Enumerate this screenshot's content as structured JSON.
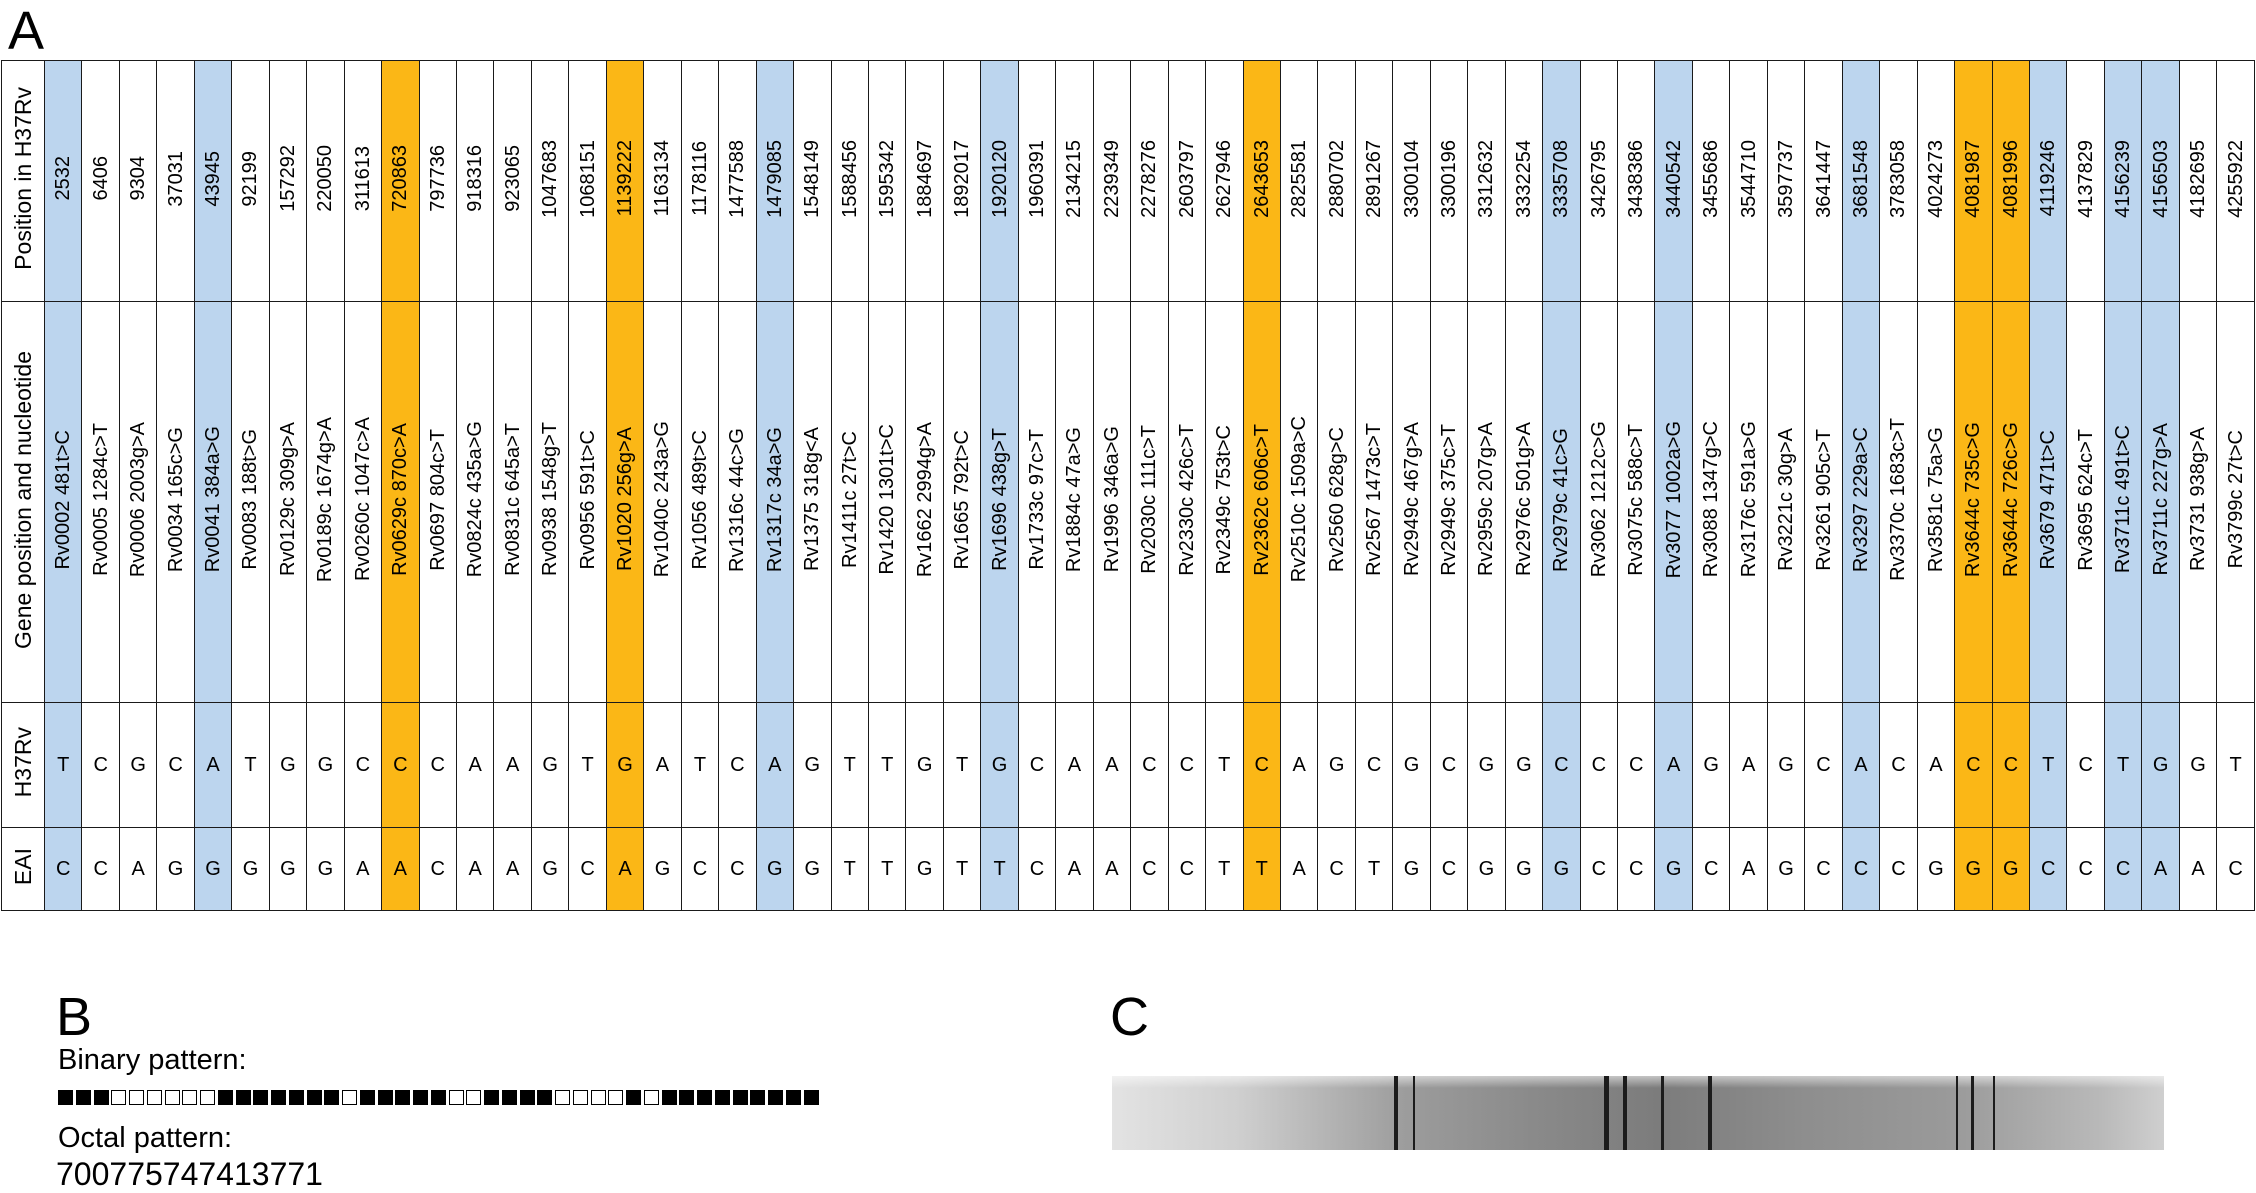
{
  "panel_a": {
    "letter": "A",
    "row_labels": {
      "position": "Position in H37Rv",
      "gene": "Gene position and nucleotide",
      "h37rv": "H37Rv",
      "eai": "EAI"
    },
    "columns": [
      {
        "pos": "2532",
        "gene": "Rv0002  481t>C",
        "h37rv": "T",
        "eai": "C",
        "hl": "blue"
      },
      {
        "pos": "6406",
        "gene": "Rv0005  1284c>T",
        "h37rv": "C",
        "eai": "C",
        "hl": ""
      },
      {
        "pos": "9304",
        "gene": "Rv0006  2003g>A",
        "h37rv": "G",
        "eai": "A",
        "hl": ""
      },
      {
        "pos": "37031",
        "gene": "Rv0034  165c>G",
        "h37rv": "C",
        "eai": "G",
        "hl": ""
      },
      {
        "pos": "43945",
        "gene": "Rv0041  384a>G",
        "h37rv": "A",
        "eai": "G",
        "hl": "blue"
      },
      {
        "pos": "92199",
        "gene": "Rv0083  188t>G",
        "h37rv": "T",
        "eai": "G",
        "hl": ""
      },
      {
        "pos": "157292",
        "gene": "Rv0129c  309g>A",
        "h37rv": "G",
        "eai": "G",
        "hl": ""
      },
      {
        "pos": "220050",
        "gene": "Rv0189c  1674g>A",
        "h37rv": "G",
        "eai": "G",
        "hl": ""
      },
      {
        "pos": "311613",
        "gene": "Rv0260c  1047c>A",
        "h37rv": "C",
        "eai": "A",
        "hl": ""
      },
      {
        "pos": "720863",
        "gene": "Rv0629c  870c>A",
        "h37rv": "C",
        "eai": "A",
        "hl": "orange"
      },
      {
        "pos": "797736",
        "gene": "Rv0697  804c>T",
        "h37rv": "C",
        "eai": "C",
        "hl": ""
      },
      {
        "pos": "918316",
        "gene": "Rv0824c  435a>G",
        "h37rv": "A",
        "eai": "A",
        "hl": ""
      },
      {
        "pos": "923065",
        "gene": "Rv0831c  645a>T",
        "h37rv": "A",
        "eai": "A",
        "hl": ""
      },
      {
        "pos": "1047683",
        "gene": "Rv0938  1548g>T",
        "h37rv": "G",
        "eai": "G",
        "hl": ""
      },
      {
        "pos": "1068151",
        "gene": "Rv0956  591t>C",
        "h37rv": "T",
        "eai": "C",
        "hl": ""
      },
      {
        "pos": "1139222",
        "gene": "Rv1020  256g>A",
        "h37rv": "G",
        "eai": "A",
        "hl": "orange"
      },
      {
        "pos": "1163134",
        "gene": "Rv1040c  243a>G",
        "h37rv": "A",
        "eai": "G",
        "hl": ""
      },
      {
        "pos": "1178116",
        "gene": "Rv1056  489t>C",
        "h37rv": "T",
        "eai": "C",
        "hl": ""
      },
      {
        "pos": "1477588",
        "gene": "Rv1316c  44c>G",
        "h37rv": "C",
        "eai": "C",
        "hl": ""
      },
      {
        "pos": "1479085",
        "gene": "Rv1317c  34a>G",
        "h37rv": "A",
        "eai": "G",
        "hl": "blue"
      },
      {
        "pos": "1548149",
        "gene": "Rv1375  318g<A",
        "h37rv": "G",
        "eai": "G",
        "hl": ""
      },
      {
        "pos": "1588456",
        "gene": "Rv1411c  27t>C",
        "h37rv": "T",
        "eai": "T",
        "hl": ""
      },
      {
        "pos": "1595342",
        "gene": "Rv1420  1301t>C",
        "h37rv": "T",
        "eai": "T",
        "hl": ""
      },
      {
        "pos": "1884697",
        "gene": "Rv1662  2994g>A",
        "h37rv": "G",
        "eai": "G",
        "hl": ""
      },
      {
        "pos": "1892017",
        "gene": "Rv1665  792t>C",
        "h37rv": "T",
        "eai": "T",
        "hl": ""
      },
      {
        "pos": "1920120",
        "gene": "Rv1696  438g>T",
        "h37rv": "G",
        "eai": "T",
        "hl": "blue"
      },
      {
        "pos": "1960391",
        "gene": "Rv1733c  97c>T",
        "h37rv": "C",
        "eai": "C",
        "hl": ""
      },
      {
        "pos": "2134215",
        "gene": "Rv1884c  47a>G",
        "h37rv": "A",
        "eai": "A",
        "hl": ""
      },
      {
        "pos": "2239349",
        "gene": "Rv1996  346a>G",
        "h37rv": "A",
        "eai": "A",
        "hl": ""
      },
      {
        "pos": "2278276",
        "gene": "Rv2030c  111c>T",
        "h37rv": "C",
        "eai": "C",
        "hl": ""
      },
      {
        "pos": "2603797",
        "gene": "Rv2330c  426c>T",
        "h37rv": "C",
        "eai": "C",
        "hl": ""
      },
      {
        "pos": "2627946",
        "gene": "Rv2349c  753t>C",
        "h37rv": "T",
        "eai": "T",
        "hl": ""
      },
      {
        "pos": "2643653",
        "gene": "Rv2362c  606c>T",
        "h37rv": "C",
        "eai": "T",
        "hl": "orange"
      },
      {
        "pos": "2825581",
        "gene": "Rv2510c  1509a>C",
        "h37rv": "A",
        "eai": "A",
        "hl": ""
      },
      {
        "pos": "2880702",
        "gene": "Rv2560  628g>C",
        "h37rv": "G",
        "eai": "C",
        "hl": ""
      },
      {
        "pos": "2891267",
        "gene": "Rv2567  1473c>T",
        "h37rv": "C",
        "eai": "T",
        "hl": ""
      },
      {
        "pos": "3300104",
        "gene": "Rv2949c  467g>A",
        "h37rv": "G",
        "eai": "G",
        "hl": ""
      },
      {
        "pos": "3300196",
        "gene": "Rv2949c  375c>T",
        "h37rv": "C",
        "eai": "C",
        "hl": ""
      },
      {
        "pos": "3312632",
        "gene": "Rv2959c  207g>A",
        "h37rv": "G",
        "eai": "G",
        "hl": ""
      },
      {
        "pos": "3332254",
        "gene": "Rv2976c  501g>A",
        "h37rv": "G",
        "eai": "G",
        "hl": ""
      },
      {
        "pos": "3335708",
        "gene": "Rv2979c  41c>G",
        "h37rv": "C",
        "eai": "G",
        "hl": "blue"
      },
      {
        "pos": "3426795",
        "gene": "Rv3062  1212c>G",
        "h37rv": "C",
        "eai": "C",
        "hl": ""
      },
      {
        "pos": "3438386",
        "gene": "Rv3075c  588c>T",
        "h37rv": "C",
        "eai": "C",
        "hl": ""
      },
      {
        "pos": "3440542",
        "gene": "Rv3077  1002a>G",
        "h37rv": "A",
        "eai": "G",
        "hl": "blue"
      },
      {
        "pos": "3455686",
        "gene": "Rv3088  1347g>C",
        "h37rv": "G",
        "eai": "C",
        "hl": ""
      },
      {
        "pos": "3544710",
        "gene": "Rv3176c  591a>G",
        "h37rv": "A",
        "eai": "A",
        "hl": ""
      },
      {
        "pos": "3597737",
        "gene": "Rv3221c  30g>A",
        "h37rv": "G",
        "eai": "G",
        "hl": ""
      },
      {
        "pos": "3641447",
        "gene": "Rv3261  905c>T",
        "h37rv": "C",
        "eai": "C",
        "hl": ""
      },
      {
        "pos": "3681548",
        "gene": "Rv3297  229a>C",
        "h37rv": "A",
        "eai": "C",
        "hl": "blue"
      },
      {
        "pos": "3783058",
        "gene": "Rv3370c  1683c>T",
        "h37rv": "C",
        "eai": "C",
        "hl": ""
      },
      {
        "pos": "4024273",
        "gene": "Rv3581c  75a>G",
        "h37rv": "A",
        "eai": "G",
        "hl": ""
      },
      {
        "pos": "4081987",
        "gene": "Rv3644c  735c>G",
        "h37rv": "C",
        "eai": "G",
        "hl": "orange"
      },
      {
        "pos": "4081996",
        "gene": "Rv3644c  726c>G",
        "h37rv": "C",
        "eai": "G",
        "hl": "orange"
      },
      {
        "pos": "4119246",
        "gene": "Rv3679  471t>C",
        "h37rv": "T",
        "eai": "C",
        "hl": "blue"
      },
      {
        "pos": "4137829",
        "gene": "Rv3695  624c>T",
        "h37rv": "C",
        "eai": "C",
        "hl": ""
      },
      {
        "pos": "4156239",
        "gene": "Rv3711c  491t>C",
        "h37rv": "T",
        "eai": "C",
        "hl": "blue"
      },
      {
        "pos": "4156503",
        "gene": "Rv3711c  227g>A",
        "h37rv": "G",
        "eai": "A",
        "hl": "blue"
      },
      {
        "pos": "4182695",
        "gene": "Rv3731  938g>A",
        "h37rv": "G",
        "eai": "A",
        "hl": ""
      },
      {
        "pos": "4255922",
        "gene": "Rv3799c  27t>C",
        "h37rv": "T",
        "eai": "C",
        "hl": ""
      }
    ],
    "colors": {
      "blue": "#bcd5ee",
      "orange": "#fbb716"
    }
  },
  "panel_b": {
    "letter": "B",
    "binary_label": "Binary pattern:",
    "binary_pattern": [
      1,
      1,
      1,
      0,
      0,
      0,
      0,
      0,
      0,
      1,
      1,
      1,
      1,
      1,
      1,
      1,
      0,
      1,
      1,
      1,
      1,
      1,
      0,
      0,
      1,
      1,
      1,
      1,
      0,
      0,
      0,
      0,
      1,
      0,
      1,
      1,
      1,
      1,
      1,
      1,
      1,
      1,
      1
    ],
    "octal_label": "Octal pattern:",
    "octal_value": "700775747413771"
  },
  "panel_c": {
    "letter": "C",
    "strip_bands": [
      {
        "at": 0.268,
        "w": 0.004
      },
      {
        "at": 0.286,
        "w": 0.0025
      },
      {
        "at": 0.468,
        "w": 0.004
      },
      {
        "at": 0.486,
        "w": 0.0035
      },
      {
        "at": 0.522,
        "w": 0.003
      },
      {
        "at": 0.567,
        "w": 0.003
      },
      {
        "at": 0.802,
        "w": 0.0025
      },
      {
        "at": 0.817,
        "w": 0.002
      },
      {
        "at": 0.837,
        "w": 0.002
      }
    ]
  }
}
